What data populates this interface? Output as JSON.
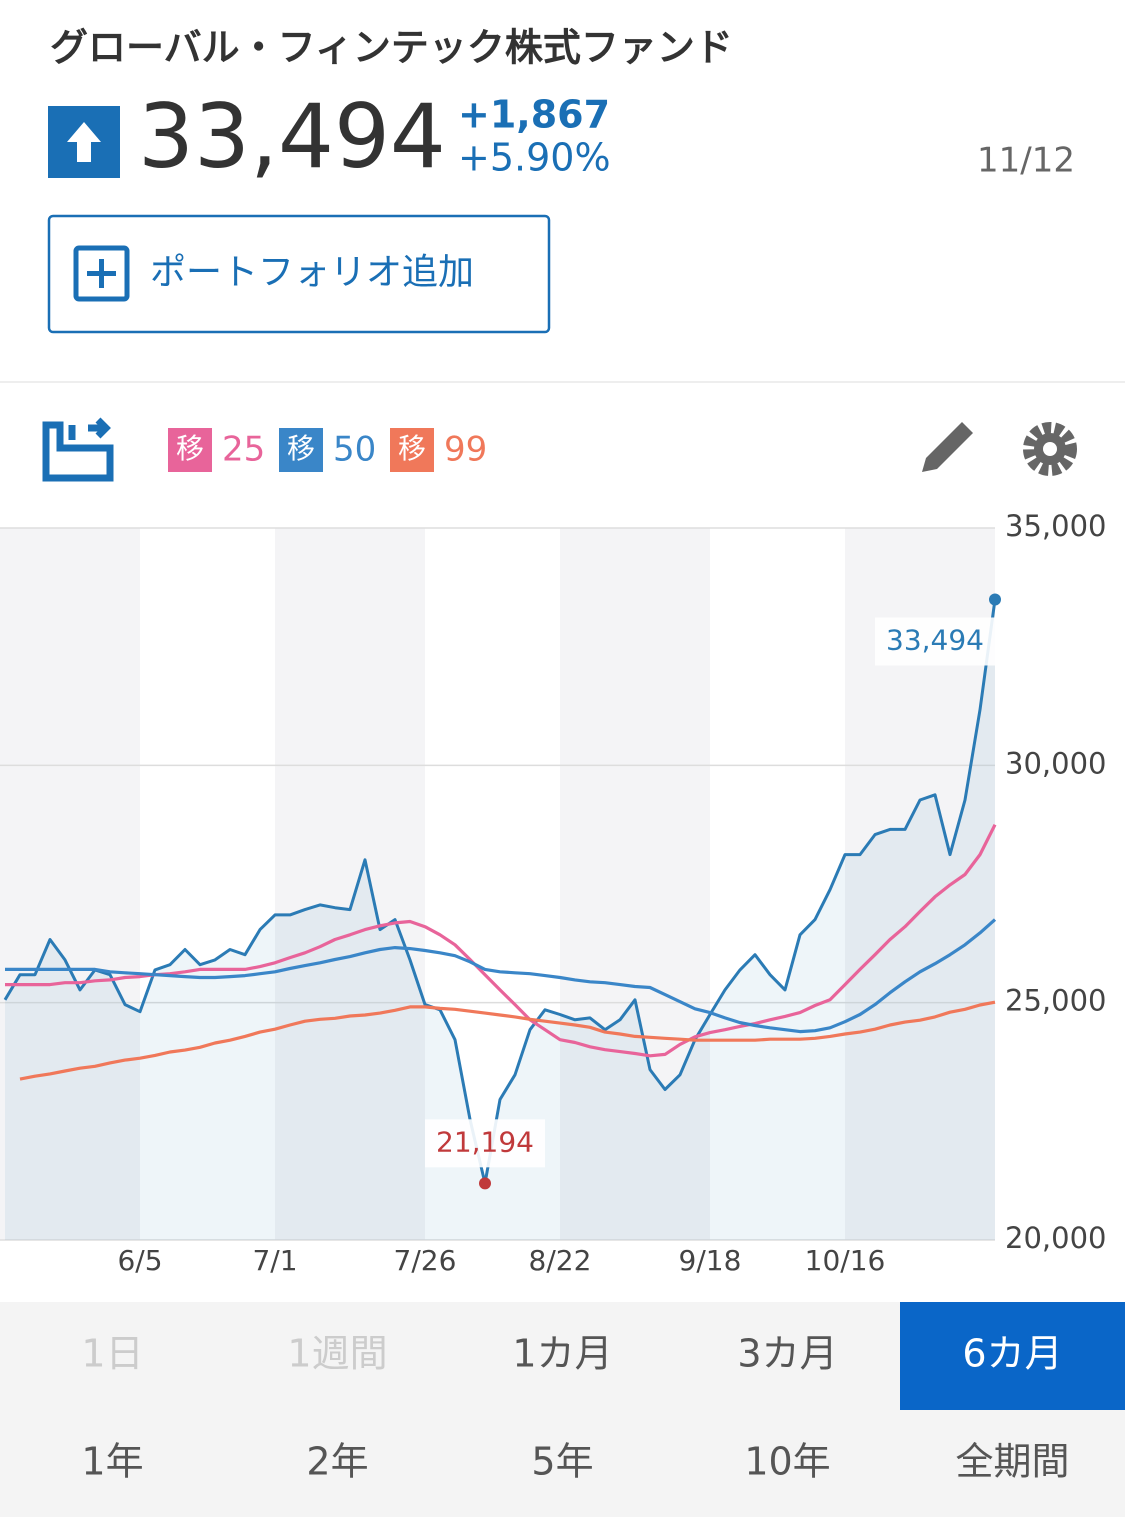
{
  "header": {
    "title": "グローバル・フィンテック株式ファンド",
    "price": "33,494",
    "change": "+1,867",
    "change_pct": "+5.90%",
    "date": "11/12"
  },
  "button": {
    "label": "ポートフォリオ追加"
  },
  "ma_badge": "移",
  "chart_data": {
    "type": "line",
    "categories": [
      null,
      null,
      null,
      null,
      null,
      null,
      null,
      null,
      null,
      "6/5",
      null,
      null,
      null,
      null,
      null,
      null,
      null,
      null,
      "7/1",
      null,
      null,
      null,
      null,
      null,
      null,
      null,
      null,
      null,
      "7/26",
      null,
      null,
      null,
      null,
      null,
      null,
      null,
      null,
      "8/22",
      null,
      null,
      null,
      null,
      null,
      null,
      null,
      null,
      null,
      "9/18",
      null,
      null,
      null,
      null,
      null,
      null,
      null,
      null,
      "10/16",
      null,
      null,
      null,
      null,
      null,
      null,
      null,
      null,
      null,
      null
    ],
    "series": [
      {
        "color": "#2b7bb5",
        "values": [
          25060,
          25590,
          25590,
          26330,
          25900,
          25270,
          25690,
          25590,
          24960,
          24810,
          25690,
          25800,
          26120,
          25800,
          25900,
          26120,
          26010,
          26540,
          26850,
          26850,
          26960,
          27060,
          27000,
          26960,
          28010,
          26540,
          26750,
          25900,
          24960,
          24850,
          24220,
          22540,
          21194,
          22960,
          23480,
          24430,
          24850,
          24750,
          24640,
          24680,
          24430,
          24640,
          25060,
          23590,
          23170,
          23480,
          24220,
          24750,
          25270,
          25690,
          26010,
          25590,
          25270,
          26430,
          26750,
          27380,
          28120,
          28120,
          28540,
          28650,
          28650,
          29270,
          29380,
          28120,
          29270,
          31170,
          33494
        ]
      },
      {
        "name": "25",
        "color": "#e8649a",
        "values": [
          25380,
          25380,
          25380,
          25380,
          25420,
          25420,
          25460,
          25480,
          25530,
          25550,
          25590,
          25610,
          25650,
          25700,
          25700,
          25700,
          25700,
          25760,
          25840,
          25950,
          26050,
          26180,
          26330,
          26430,
          26540,
          26620,
          26680,
          26710,
          26600,
          26430,
          26220,
          25910,
          25590,
          25270,
          24960,
          24640,
          24430,
          24220,
          24160,
          24070,
          24010,
          23970,
          23930,
          23880,
          23910,
          24120,
          24280,
          24370,
          24430,
          24500,
          24560,
          24640,
          24710,
          24790,
          24940,
          25060,
          25380,
          25700,
          26010,
          26330,
          26600,
          26920,
          27230,
          27480,
          27700,
          28120,
          28750
        ]
      },
      {
        "name": "50",
        "color": "#3a86c8",
        "values": [
          25700,
          25700,
          25700,
          25700,
          25700,
          25700,
          25700,
          25650,
          25630,
          25610,
          25590,
          25570,
          25550,
          25530,
          25530,
          25550,
          25570,
          25610,
          25650,
          25720,
          25780,
          25840,
          25910,
          25970,
          26050,
          26120,
          26160,
          26140,
          26100,
          26050,
          25990,
          25860,
          25700,
          25650,
          25630,
          25610,
          25570,
          25530,
          25480,
          25440,
          25420,
          25380,
          25340,
          25320,
          25170,
          25020,
          24870,
          24790,
          24680,
          24580,
          24520,
          24470,
          24430,
          24390,
          24410,
          24470,
          24600,
          24750,
          24960,
          25210,
          25440,
          25650,
          25820,
          26010,
          26220,
          26470,
          26750
        ]
      },
      {
        "name": "99",
        "color": "#f0785a",
        "values": [
          null,
          23390,
          23450,
          23500,
          23560,
          23620,
          23660,
          23730,
          23790,
          23830,
          23890,
          23960,
          24000,
          24060,
          24150,
          24210,
          24290,
          24380,
          24440,
          24530,
          24610,
          24650,
          24670,
          24720,
          24740,
          24780,
          24840,
          24910,
          24910,
          24880,
          24860,
          24820,
          24780,
          24740,
          24700,
          24650,
          24610,
          24570,
          24530,
          24480,
          24380,
          24340,
          24290,
          24270,
          24250,
          24230,
          24210,
          24210,
          24210,
          24210,
          24210,
          24230,
          24230,
          24230,
          24250,
          24290,
          24340,
          24380,
          24440,
          24530,
          24590,
          24630,
          24700,
          24800,
          24860,
          24950,
          25010
        ]
      }
    ],
    "high": {
      "label": "33,494",
      "value": 33494,
      "color": "#2b7bb5"
    },
    "low": {
      "label": "21,194",
      "value": 21194,
      "color": "#c0393b"
    },
    "ylim": [
      20000,
      35000
    ],
    "yticks": [
      {
        "value": 20000,
        "label": "20,000"
      },
      {
        "value": 25000,
        "label": "25,000"
      },
      {
        "value": 30000,
        "label": "30,000"
      },
      {
        "value": 35000,
        "label": "35,000"
      }
    ],
    "grid": true
  },
  "periods": [
    {
      "label": "1日",
      "state": "disabled"
    },
    {
      "label": "1週間",
      "state": "disabled"
    },
    {
      "label": "1カ月",
      "state": "normal"
    },
    {
      "label": "3カ月",
      "state": "normal"
    },
    {
      "label": "6カ月",
      "state": "selected"
    },
    {
      "label": "1年",
      "state": "normal"
    },
    {
      "label": "2年",
      "state": "normal"
    },
    {
      "label": "5年",
      "state": "normal"
    },
    {
      "label": "10年",
      "state": "normal"
    },
    {
      "label": "全期間",
      "state": "normal"
    }
  ]
}
